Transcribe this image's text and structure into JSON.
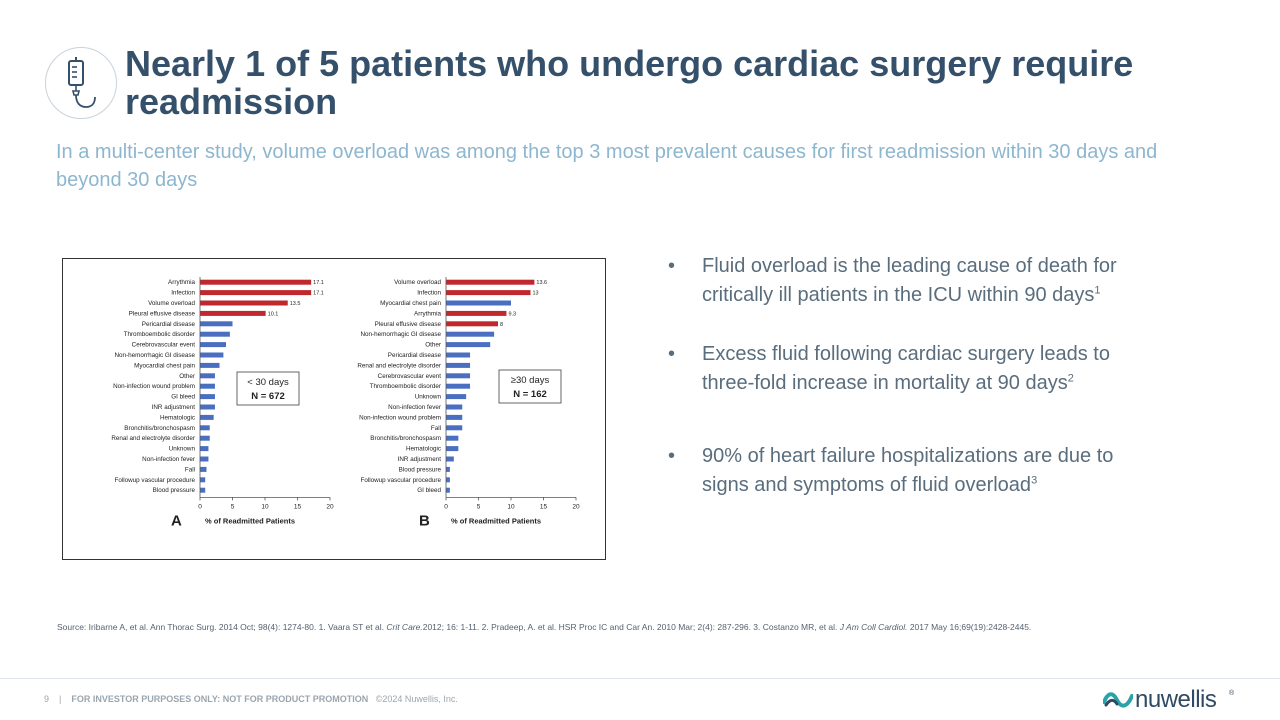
{
  "header": {
    "title": "Nearly 1 of 5 patients who undergo cardiac surgery require readmission",
    "subtitle": "In a multi-center study, volume overload was among the top 3 most prevalent causes for first readmission within 30 days and beyond 30 days"
  },
  "icon": "iv-bag-icon",
  "colors": {
    "title": "#35506a",
    "subtitle": "#8db6cf",
    "bar_top": "#c0282e",
    "bar_other": "#4a6fc1"
  },
  "chart_data": [
    {
      "type": "bar",
      "orientation": "horizontal",
      "panel": "A",
      "xlabel": "% of Readmitted Patients",
      "xlim": [
        0,
        20
      ],
      "xticks": [
        "0",
        "5",
        "10",
        "15",
        "20"
      ],
      "box_label": "< 30 days",
      "box_n": "N = 672",
      "categories": [
        "Arrythmia",
        "Infection",
        "Volume overload",
        "Pleural effusive disease",
        "Pericardial disease",
        "Thromboembolic disorder",
        "Cerebrovascular event",
        "Non-hemorrhagic GI disease",
        "Myocardial chest pain",
        "Other",
        "Non-infection wound problem",
        "GI bleed",
        "INR adjustment",
        "Hematologic",
        "Bronchitis/bronchospasm",
        "Renal and electrolyte disorder",
        "Unknown",
        "Non-infection fever",
        "Fall",
        "Followup vascular procedure",
        "Blood pressure"
      ],
      "values": [
        17.1,
        17.1,
        13.5,
        10.1,
        5.0,
        4.6,
        4.0,
        3.6,
        3.0,
        2.3,
        2.3,
        2.3,
        2.3,
        2.1,
        1.5,
        1.5,
        1.3,
        1.3,
        1.0,
        0.8,
        0.8
      ],
      "labels": [
        "17.1",
        "17.1",
        "13.5",
        "10.1"
      ],
      "highlight_count": 4
    },
    {
      "type": "bar",
      "orientation": "horizontal",
      "panel": "B",
      "xlabel": "% of Readmitted Patients",
      "xlim": [
        0,
        20
      ],
      "xticks": [
        "0",
        "5",
        "10",
        "15",
        "20"
      ],
      "box_label": "≥30 days",
      "box_n": "N = 162",
      "categories": [
        "Volume overload",
        "Infection",
        "Myocardial chest pain",
        "Arrythmia",
        "Pleural effusive disease",
        "Non-hemorrhagic GI disease",
        "Other",
        "Pericardial disease",
        "Renal and electrolyte disorder",
        "Cerebrovascular event",
        "Thromboembolic disorder",
        "Unknown",
        "Non-infection fever",
        "Non-infection wound problem",
        "Fall",
        "Bronchitis/bronchospasm",
        "Hematologic",
        "INR adjustment",
        "Blood pressure",
        "Followup vascular procedure",
        "GI bleed"
      ],
      "values": [
        13.6,
        13,
        10,
        9.3,
        8,
        7.4,
        6.8,
        3.7,
        3.7,
        3.7,
        3.7,
        3.1,
        2.5,
        2.5,
        2.5,
        1.9,
        1.9,
        1.2,
        0.6,
        0.6,
        0.6
      ],
      "labels": [
        "13.6",
        "13",
        "",
        "9.3",
        "8"
      ],
      "highlight_indices": [
        0,
        1,
        3,
        4
      ]
    }
  ],
  "bullets": [
    {
      "text": "Fluid overload is the leading cause of death for critically ill patients in the ICU within 90 days",
      "sup": "1"
    },
    {
      "text": "Excess fluid following cardiac surgery leads to three-fold increase in mortality at 90 days",
      "sup": "2"
    },
    {
      "text": "90% of heart failure hospitalizations are due to signs and symptoms of fluid overload",
      "sup": "3"
    }
  ],
  "source": {
    "part1": "Source: Iribarne A, et al. Ann Thorac Surg. 2014 Oct; 98(4): 1274-80. 1. Vaara ST et al. ",
    "journal1": "Crit Care.",
    "part2": "2012; 16: 1-11. 2. Pradeep, A. et al. HSR Proc IC and Car An. 2010 Mar; 2(4): 287-296. 3. Costanzo MR, et al. ",
    "journal2": "J Am Coll Cardiol.",
    "part3": " 2017 May 16;69(19):2428-2445."
  },
  "footer": {
    "page": "9",
    "separator": "|",
    "disclaimer": "FOR INVESTOR PURPOSES ONLY: NOT FOR PRODUCT PROMOTION",
    "copyright": "©2024 Nuwellis, Inc.",
    "logo_text": "nuwellis",
    "logo_mark": "®"
  }
}
